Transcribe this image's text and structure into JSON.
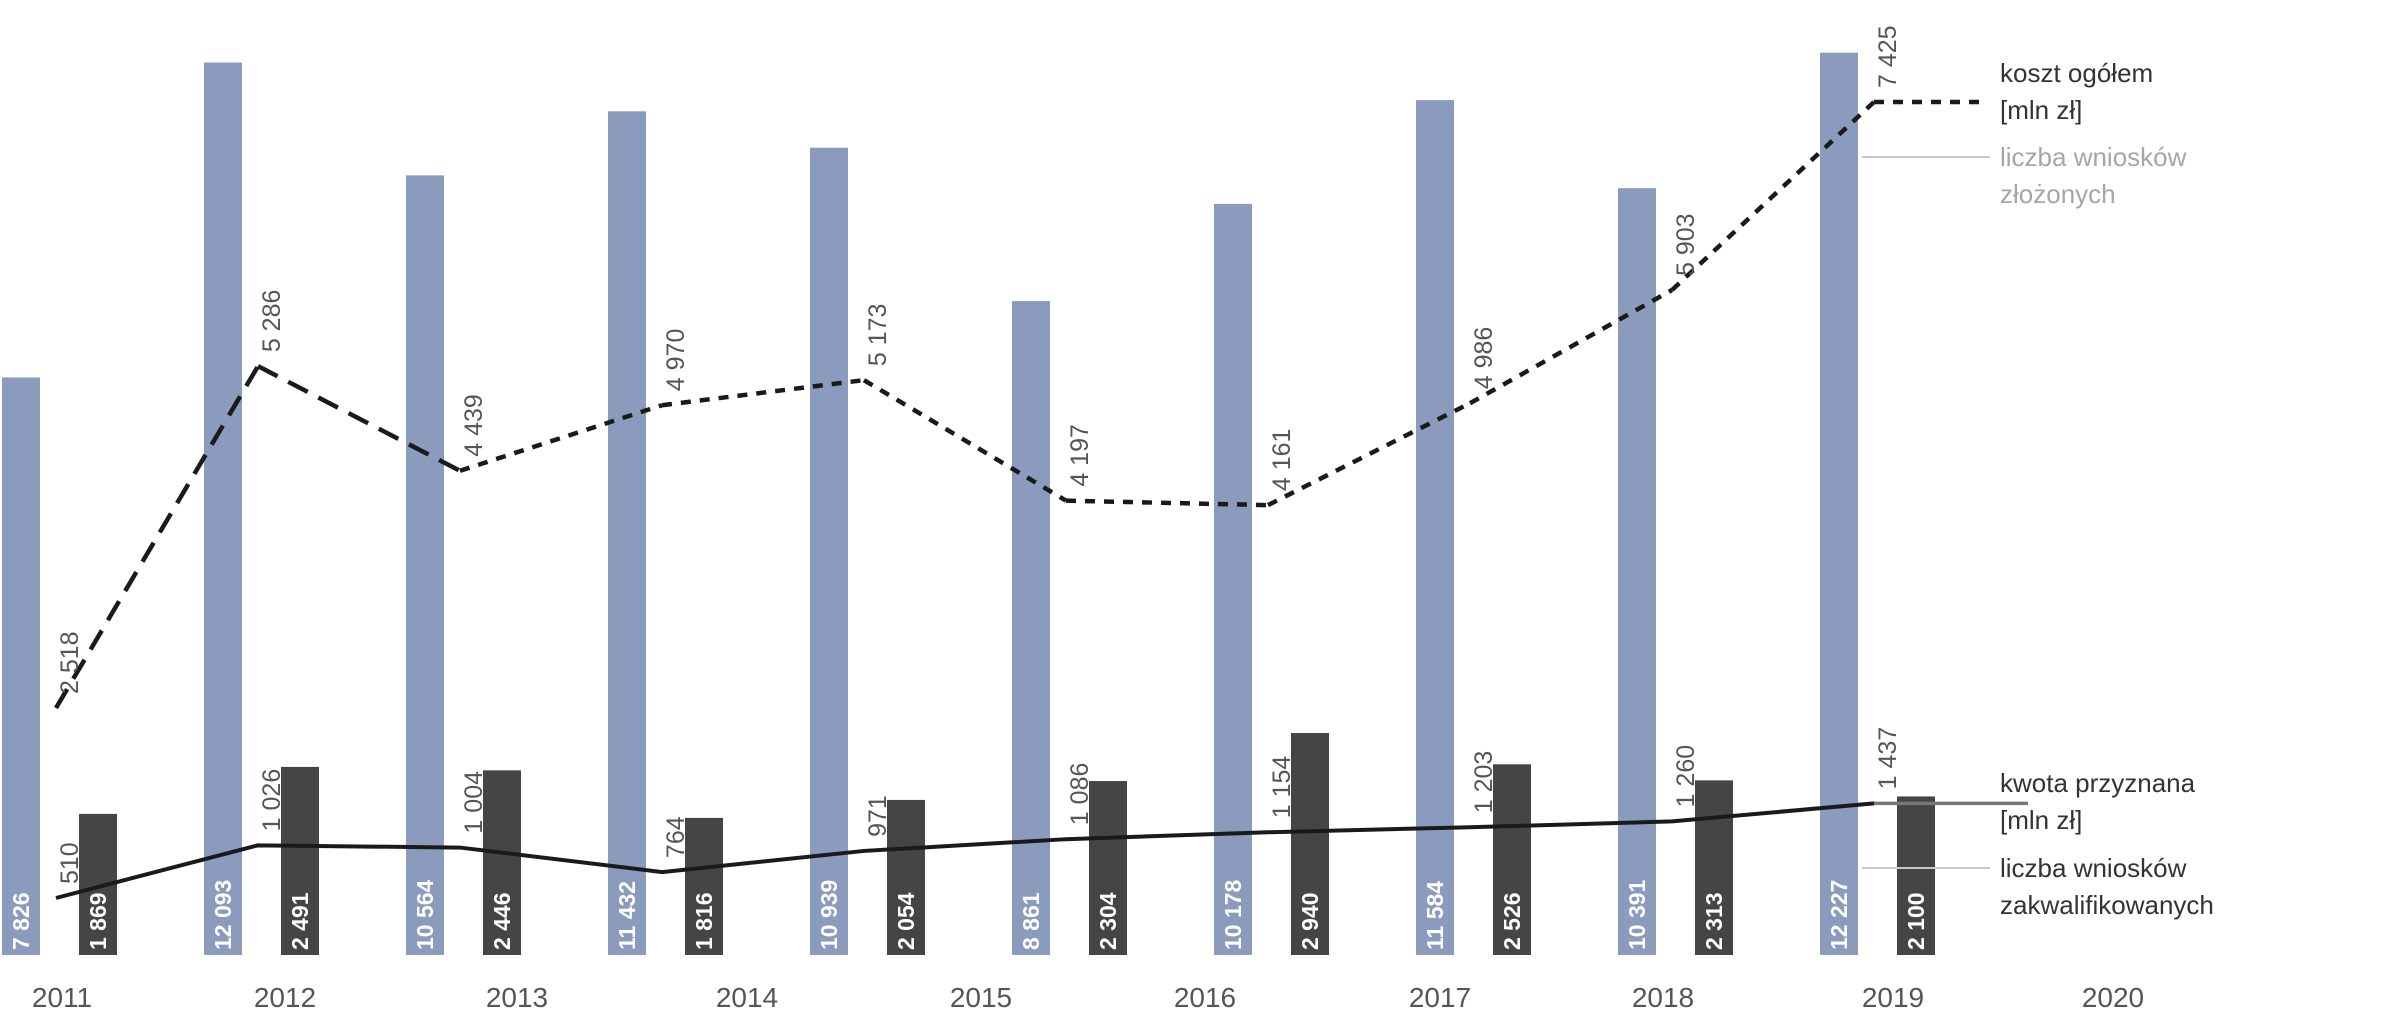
{
  "chart_data": {
    "type": "bar",
    "categories": [
      "2011",
      "2012",
      "2013",
      "2014",
      "2015",
      "2016",
      "2017",
      "2018",
      "2019",
      "2020"
    ],
    "series": [
      {
        "name": "liczba wniosków złożonych",
        "kind": "bar",
        "color": "#8a9bbd",
        "values": [
          7826,
          12093,
          10564,
          11432,
          10939,
          8861,
          10178,
          11584,
          10391,
          12227
        ],
        "labels": [
          "7 826",
          "12 093",
          "10 564",
          "11 432",
          "10 939",
          "8 861",
          "10 178",
          "11 584",
          "10 391",
          "12 227"
        ]
      },
      {
        "name": "liczba wniosków zakwalifikowanych",
        "kind": "bar",
        "color": "#454545",
        "values": [
          1869,
          2491,
          2446,
          1816,
          2054,
          2304,
          2940,
          2526,
          2313,
          2100
        ],
        "labels": [
          "1 869",
          "2 491",
          "2 446",
          "1 816",
          "2 054",
          "2 304",
          "2 940",
          "2 526",
          "2 313",
          "2 100"
        ]
      },
      {
        "name": "koszt ogółem [mln zł]",
        "kind": "line",
        "style": "dashed",
        "color": "#1a1a1a",
        "values": [
          2518,
          5286,
          4439,
          4970,
          5173,
          4197,
          4161,
          4986,
          5903,
          7425
        ],
        "labels": [
          "2 518",
          "5 286",
          "4 439",
          "4 970",
          "5 173",
          "4 197",
          "4 161",
          "4 986",
          "5 903",
          "7 425"
        ]
      },
      {
        "name": "kwota przyznana [mln zł]",
        "kind": "line",
        "style": "solid",
        "color": "#1a1a1a",
        "values": [
          510,
          1026,
          1004,
          764,
          971,
          1086,
          1154,
          1203,
          1260,
          1437
        ],
        "labels": [
          "510",
          "1 026",
          "1 004",
          "764",
          "971",
          "1 086",
          "1 154",
          "1 203",
          "1 260",
          "1 437"
        ]
      }
    ],
    "x_tick_labels": [
      "2011",
      "2012",
      "2013",
      "2014",
      "2015",
      "2016",
      "2017",
      "2018",
      "2019",
      "2020"
    ],
    "legend": {
      "placement": "right",
      "entries": [
        {
          "lines": [
            "koszt ogółem",
            "[mln zł]"
          ],
          "color": "#333333"
        },
        {
          "lines": [
            "liczba wniosków",
            "złożonych"
          ],
          "color": "#a6a6a6"
        },
        {
          "lines": [
            "kwota przyznana",
            "[mln zł]"
          ],
          "color": "#333333"
        },
        {
          "lines": [
            "liczba wniosków",
            "zakwalifikowanych"
          ],
          "color": "#333333"
        }
      ]
    },
    "grid": false
  }
}
